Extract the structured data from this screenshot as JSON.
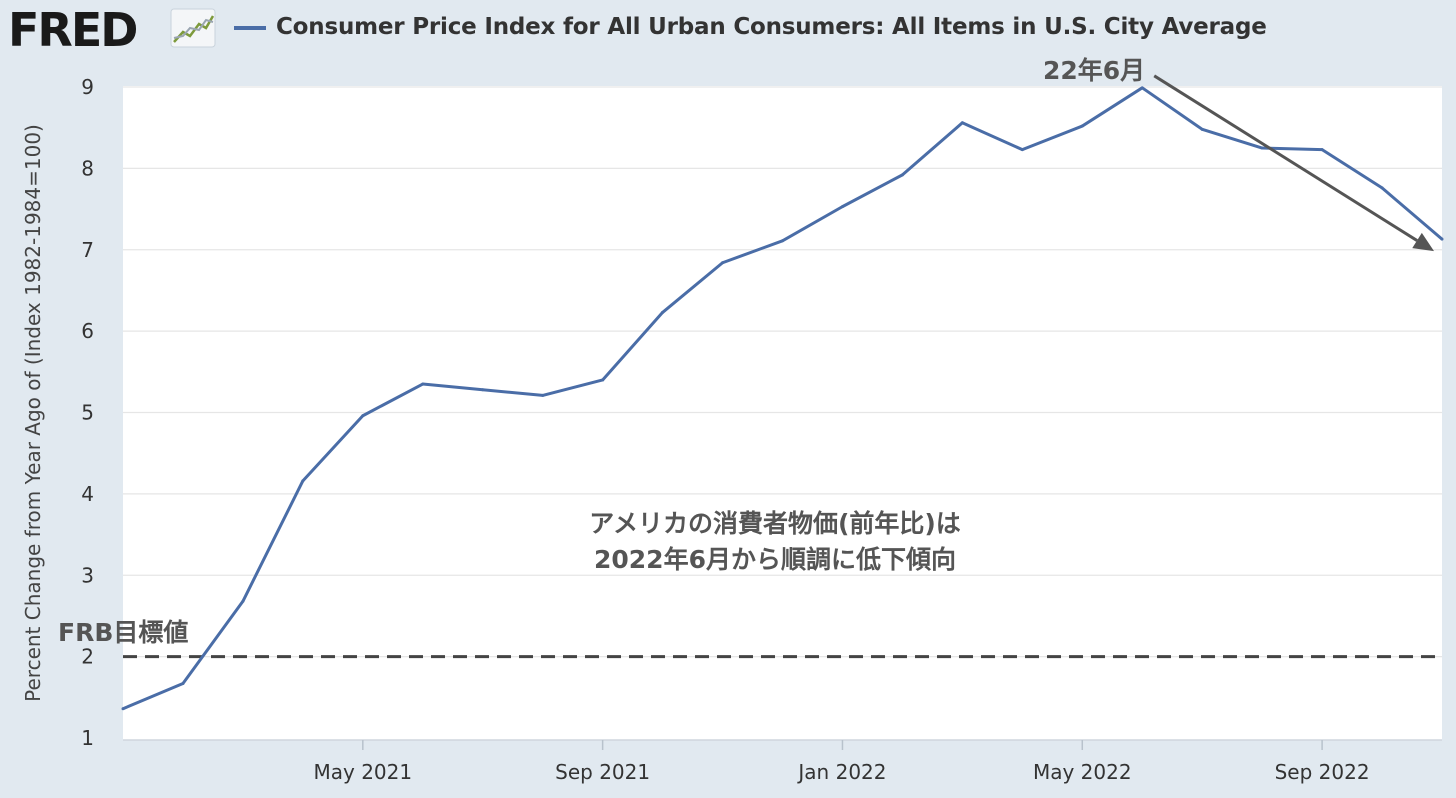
{
  "header": {
    "logo_text": "FRED",
    "logo_icon": "line-chart-icon",
    "series_title": "Consumer Price Index for All Urban Consumers: All Items in U.S. City Average"
  },
  "colors": {
    "background": "#e1e9f0",
    "plot_background": "#ffffff",
    "series": "#4a6da7",
    "annotation": "#555555",
    "grid": "#e6e6e6"
  },
  "annotations": {
    "peak_label": "22年6月",
    "target_label": "FRB目標値",
    "note_line1": "アメリカの消費者物価(前年比)は",
    "note_line2": "2022年6月から順調に低下傾向"
  },
  "chart_data": {
    "type": "line",
    "title": "Consumer Price Index for All Urban Consumers: All Items in U.S. City Average",
    "ylabel": "Percent Change from Year Ago of (Index 1982-1984=100)",
    "xlabel": "",
    "ylim": [
      1,
      9
    ],
    "yticks": [
      1,
      2,
      3,
      4,
      5,
      6,
      7,
      8,
      9
    ],
    "x_tick_labels": [
      "May 2021",
      "Sep 2021",
      "Jan 2022",
      "May 2022",
      "Sep 2022"
    ],
    "x_tick_dates": [
      "2021-05",
      "2021-09",
      "2022-01",
      "2022-05",
      "2022-09"
    ],
    "grid": true,
    "legend": "top",
    "series": [
      {
        "name": "Consumer Price Index for All Urban Consumers: All Items in U.S. City Average",
        "x": [
          "2021-01",
          "2021-02",
          "2021-03",
          "2021-04",
          "2021-05",
          "2021-06",
          "2021-07",
          "2021-08",
          "2021-09",
          "2021-10",
          "2021-11",
          "2021-12",
          "2022-01",
          "2022-02",
          "2022-03",
          "2022-04",
          "2022-05",
          "2022-06",
          "2022-07",
          "2022-08",
          "2022-09",
          "2022-10",
          "2022-11"
        ],
        "values": [
          1.36,
          1.67,
          2.68,
          4.16,
          4.96,
          5.35,
          5.28,
          5.21,
          5.4,
          6.23,
          6.84,
          7.11,
          7.53,
          7.92,
          8.56,
          8.23,
          8.52,
          8.99,
          8.48,
          8.25,
          8.23,
          7.76,
          7.13
        ]
      }
    ],
    "reference_lines": [
      {
        "y": 2,
        "style": "dashed",
        "label": "FRB目標値"
      }
    ],
    "arrow": {
      "from": "2022-06",
      "to": "2022-11"
    }
  }
}
